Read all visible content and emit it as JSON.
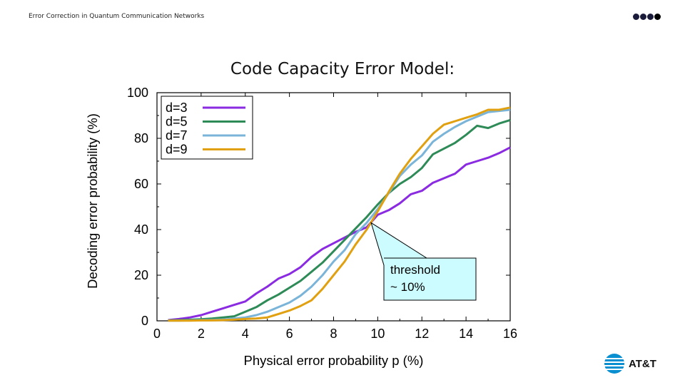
{
  "header": {
    "title": "Error Correction in Quantum Communication Networks"
  },
  "slide": {
    "title": "Code Capacity Error Model:"
  },
  "chart_data": {
    "type": "line",
    "xlabel": "Physical error probability p (%)",
    "ylabel": "Decoding error probability (%)",
    "xlim": [
      0,
      16
    ],
    "ylim": [
      0,
      100
    ],
    "xticks": [
      0,
      2,
      4,
      6,
      8,
      10,
      12,
      14,
      16
    ],
    "yticks": [
      0,
      20,
      40,
      60,
      80,
      100
    ],
    "x": [
      0.5,
      1,
      1.5,
      2,
      2.5,
      3,
      3.5,
      4,
      4.5,
      5,
      5.5,
      6,
      6.5,
      7,
      7.5,
      8,
      8.5,
      9,
      9.5,
      10,
      10.5,
      11,
      11.5,
      12,
      12.5,
      13,
      13.5,
      14,
      14.5,
      15,
      15.5,
      16
    ],
    "series": [
      {
        "name": "d=3",
        "color": "#8a2be2",
        "values": [
          0.3,
          0.8,
          1.5,
          2.5,
          4,
          5.5,
          7,
          8.5,
          12,
          15,
          18.5,
          20.5,
          23.5,
          28,
          31.5,
          34,
          36.5,
          39,
          41,
          46.5,
          48.5,
          51.5,
          55.5,
          57,
          60.5,
          62.5,
          64.5,
          68.5,
          70,
          71.5,
          73.5,
          76
        ]
      },
      {
        "name": "d=5",
        "color": "#2e8b57",
        "values": [
          0.2,
          0.3,
          0.5,
          0.7,
          1,
          1.5,
          2,
          4,
          6,
          9,
          11.5,
          14.5,
          17.5,
          21.5,
          25.5,
          30.5,
          35.5,
          40.5,
          45.5,
          51,
          56,
          60,
          63,
          67,
          73,
          75.5,
          78,
          81.5,
          85.5,
          84.5,
          86.5,
          88
        ]
      },
      {
        "name": "d=7",
        "color": "#7ab4d8",
        "values": [
          0.1,
          0.1,
          0.2,
          0.3,
          0.4,
          0.6,
          1,
          1.5,
          2.5,
          4,
          6,
          8,
          11,
          15,
          20,
          26,
          31,
          38,
          43,
          49,
          56,
          63.5,
          68.5,
          72.5,
          78.5,
          82,
          85,
          87.5,
          89.5,
          91.5,
          92,
          92.5
        ]
      },
      {
        "name": "d=9",
        "color": "#e0a010",
        "values": [
          0.1,
          0.1,
          0.1,
          0.2,
          0.2,
          0.3,
          0.5,
          0.8,
          1,
          1.5,
          3,
          4.5,
          6.5,
          9,
          14,
          20,
          26,
          33.5,
          40,
          48,
          56.5,
          64.5,
          71,
          76.5,
          82,
          86,
          87.5,
          89,
          90.5,
          92.5,
          92.5,
          93.5
        ]
      }
    ],
    "legend_position": "top-left",
    "annotation": {
      "lines": [
        "threshold",
        "~ 10%"
      ],
      "point": {
        "x": 9.7,
        "y": 43
      }
    }
  },
  "logo": {
    "text": "AT&T"
  }
}
